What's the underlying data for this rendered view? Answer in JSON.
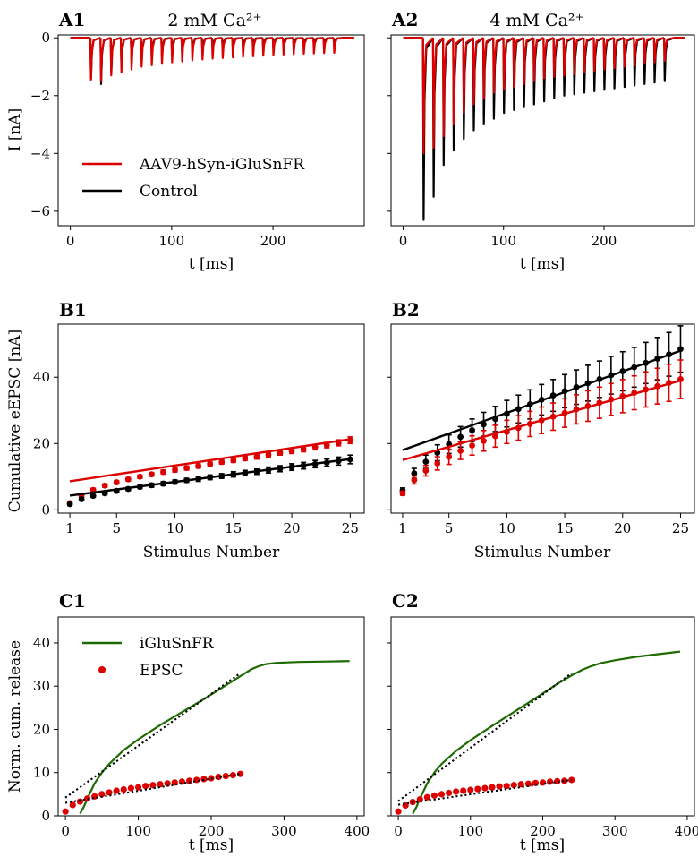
{
  "figure": {
    "panels": {
      "A1": {
        "label": "A1",
        "title": "2 mM Ca²⁺"
      },
      "A2": {
        "label": "A2",
        "title": "4 mM Ca²⁺"
      },
      "B1": {
        "label": "B1"
      },
      "B2": {
        "label": "B2"
      },
      "C1": {
        "label": "C1"
      },
      "C2": {
        "label": "C2"
      }
    }
  },
  "colors": {
    "aav": "#dd0000",
    "control": "#000000",
    "iglu": "#1d6a00",
    "epsc": "#dd0000",
    "fit": "#000000"
  },
  "chart_data": [
    {
      "id": "A1",
      "type": "line",
      "title": "2 mM Ca²⁺",
      "xlabel": "t [ms]",
      "ylabel": "I [nA]",
      "xlim": [
        -12,
        290
      ],
      "ylim": [
        -6.5,
        0.1
      ],
      "xticks": [
        0,
        100,
        200
      ],
      "yticks": [
        -6,
        -4,
        -2,
        0
      ],
      "xtick_labels": [
        "0",
        "100",
        "200"
      ],
      "ytick_labels": [
        "−6",
        "−4",
        "−2",
        "0"
      ],
      "legend": {
        "location": "lower-left",
        "entries": [
          "AAV9-hSyn-iGluSnFR",
          "Control"
        ]
      },
      "stim_start": 20,
      "stim_interval": 10,
      "n_stimuli": 25,
      "series": [
        {
          "name": "AAV9-hSyn-iGluSnFR",
          "color": "#dd0000",
          "peaks": [
            -1.45,
            -1.5,
            -1.3,
            -1.2,
            -1.1,
            -1.0,
            -0.95,
            -0.9,
            -0.85,
            -0.82,
            -0.78,
            -0.75,
            -0.72,
            -0.7,
            -0.68,
            -0.66,
            -0.64,
            -0.62,
            -0.6,
            -0.58,
            -0.57,
            -0.55,
            -0.54,
            -0.53,
            -0.52
          ]
        },
        {
          "name": "Control",
          "color": "#000000",
          "peaks": [
            -1.4,
            -1.6,
            -1.2,
            -1.0,
            -0.9,
            -0.8,
            -0.72,
            -0.66,
            -0.6,
            -0.56,
            -0.52,
            -0.48,
            -0.45,
            -0.42,
            -0.4,
            -0.38,
            -0.36,
            -0.34,
            -0.33,
            -0.32,
            -0.31,
            -0.3,
            -0.29,
            -0.28,
            -0.27
          ]
        }
      ]
    },
    {
      "id": "A2",
      "type": "line",
      "title": "4 mM Ca²⁺",
      "xlabel": "t [ms]",
      "ylabel": "",
      "xlim": [
        -12,
        290
      ],
      "ylim": [
        -6.5,
        0.1
      ],
      "xticks": [
        0,
        100,
        200
      ],
      "yticks": [
        -6,
        -4,
        -2,
        0
      ],
      "xtick_labels": [
        "0",
        "100",
        "200"
      ],
      "ytick_labels": [],
      "stim_start": 20,
      "stim_interval": 10,
      "n_stimuli": 25,
      "series": [
        {
          "name": "AAV9-hSyn-iGluSnFR",
          "color": "#dd0000",
          "peaks": [
            -4.0,
            -3.8,
            -3.4,
            -3.0,
            -2.6,
            -2.3,
            -2.1,
            -1.9,
            -1.8,
            -1.7,
            -1.6,
            -1.5,
            -1.4,
            -1.35,
            -1.3,
            -1.25,
            -1.2,
            -1.15,
            -1.1,
            -1.05,
            -1.0,
            -0.95,
            -0.9,
            -0.85,
            -0.8
          ]
        },
        {
          "name": "Control",
          "color": "#000000",
          "peaks": [
            -6.3,
            -5.5,
            -4.4,
            -3.9,
            -3.5,
            -3.2,
            -3.0,
            -2.8,
            -2.6,
            -2.5,
            -2.4,
            -2.3,
            -2.2,
            -2.1,
            -2.0,
            -1.95,
            -1.9,
            -1.85,
            -1.8,
            -1.75,
            -1.7,
            -1.65,
            -1.6,
            -1.55,
            -1.5
          ]
        }
      ]
    },
    {
      "id": "B1",
      "type": "scatter",
      "xlabel": "Stimulus Number",
      "ylabel": "Cumulative eEPSC [nA]",
      "xlim": [
        0,
        26.2
      ],
      "ylim": [
        -1,
        56
      ],
      "xticks": [
        1,
        5,
        10,
        15,
        20,
        25
      ],
      "yticks": [
        0,
        20,
        40
      ],
      "xtick_labels": [
        "1",
        "5",
        "10",
        "15",
        "20",
        "25"
      ],
      "ytick_labels": [
        "0",
        "20",
        "40"
      ],
      "series": [
        {
          "name": "AAV9-hSyn-iGluSnFR",
          "color": "#dd0000",
          "values": [
            2.0,
            4.2,
            6.0,
            7.3,
            8.3,
            9.2,
            10.0,
            10.7,
            11.4,
            12.0,
            12.6,
            13.2,
            13.8,
            14.4,
            14.9,
            15.5,
            16.0,
            16.6,
            17.2,
            17.7,
            18.3,
            18.9,
            19.5,
            20.2,
            21.0
          ],
          "err": [
            0.5,
            0.5,
            0.5,
            0.5,
            0.5,
            0.5,
            0.5,
            0.5,
            0.6,
            0.6,
            0.6,
            0.6,
            0.6,
            0.6,
            0.6,
            0.6,
            0.7,
            0.7,
            0.7,
            0.7,
            0.8,
            0.8,
            0.8,
            0.9,
            1.0
          ],
          "fit": [
            8.6,
            21.3
          ]
        },
        {
          "name": "Control",
          "color": "#000000",
          "values": [
            1.7,
            3.2,
            4.2,
            5.0,
            5.7,
            6.3,
            6.9,
            7.4,
            7.9,
            8.4,
            8.9,
            9.3,
            9.8,
            10.2,
            10.7,
            11.1,
            11.5,
            12.0,
            12.4,
            12.9,
            13.3,
            13.8,
            14.2,
            14.7,
            15.2
          ],
          "err": [
            0.4,
            0.4,
            0.4,
            0.5,
            0.5,
            0.5,
            0.5,
            0.6,
            0.6,
            0.6,
            0.6,
            0.7,
            0.7,
            0.7,
            0.8,
            0.8,
            0.8,
            0.9,
            0.9,
            1.0,
            1.0,
            1.1,
            1.1,
            1.2,
            1.3
          ],
          "fit": [
            4.3,
            15.3
          ]
        }
      ]
    },
    {
      "id": "B2",
      "type": "scatter",
      "xlabel": "Stimulus Number",
      "ylabel": "",
      "xlim": [
        0,
        26.2
      ],
      "ylim": [
        -1,
        56
      ],
      "xticks": [
        1,
        5,
        10,
        15,
        20,
        25
      ],
      "yticks": [
        0,
        20,
        40
      ],
      "xtick_labels": [
        "1",
        "5",
        "10",
        "15",
        "20",
        "25"
      ],
      "ytick_labels": [],
      "series": [
        {
          "name": "Control",
          "color": "#000000",
          "values": [
            5.8,
            11.0,
            14.5,
            17.2,
            19.8,
            22.0,
            24.0,
            25.8,
            27.4,
            29.0,
            30.4,
            31.8,
            33.2,
            34.5,
            35.8,
            37.0,
            38.2,
            39.4,
            40.6,
            41.8,
            43.0,
            44.3,
            45.6,
            46.9,
            48.5
          ],
          "err": [
            0.8,
            1.5,
            2.0,
            2.4,
            2.8,
            3.1,
            3.4,
            3.6,
            3.8,
            4.0,
            4.2,
            4.4,
            4.6,
            4.8,
            5.0,
            5.2,
            5.4,
            5.5,
            5.7,
            5.9,
            6.0,
            6.2,
            6.4,
            6.6,
            7.0
          ],
          "fit": [
            18.0,
            48.0
          ]
        },
        {
          "name": "AAV9-hSyn-iGluSnFR",
          "color": "#dd0000",
          "values": [
            5.0,
            9.0,
            11.8,
            14.0,
            16.0,
            17.8,
            19.4,
            20.8,
            22.2,
            23.5,
            24.7,
            25.9,
            27.0,
            28.1,
            29.2,
            30.3,
            31.3,
            32.3,
            33.3,
            34.3,
            35.3,
            36.3,
            37.3,
            38.3,
            39.4
          ],
          "err": [
            0.6,
            1.2,
            1.6,
            2.0,
            2.3,
            2.6,
            2.9,
            3.1,
            3.3,
            3.5,
            3.7,
            3.8,
            4.0,
            4.1,
            4.3,
            4.4,
            4.6,
            4.7,
            4.8,
            5.0,
            5.1,
            5.3,
            5.4,
            5.6,
            5.8
          ],
          "fit": [
            15.0,
            39.0
          ]
        }
      ]
    },
    {
      "id": "C1",
      "type": "line",
      "xlabel": "t [ms]",
      "ylabel": "Norm. cum. release",
      "xlim": [
        -10,
        410
      ],
      "ylim": [
        0,
        46
      ],
      "xticks": [
        0,
        100,
        200,
        300,
        400
      ],
      "yticks": [
        0,
        10,
        20,
        30,
        40
      ],
      "xtick_labels": [
        "0",
        "100",
        "200",
        "300",
        "400"
      ],
      "ytick_labels": [
        "0",
        "10",
        "20",
        "30",
        "40"
      ],
      "legend": {
        "location": "top-left",
        "entries": [
          "iGluSnFR",
          "EPSC"
        ]
      },
      "series": [
        {
          "name": "iGluSnFR",
          "color": "#1d6a00",
          "x": [
            20,
            25,
            30,
            40,
            50,
            60,
            80,
            100,
            130,
            160,
            190,
            220,
            240,
            255,
            265,
            275,
            290,
            320,
            360,
            390
          ],
          "y": [
            0.5,
            2.0,
            4.0,
            7.5,
            10.0,
            12.0,
            15.2,
            17.7,
            21.0,
            24.0,
            27.0,
            30.2,
            32.3,
            33.9,
            34.6,
            35.1,
            35.4,
            35.6,
            35.7,
            35.8
          ]
        },
        {
          "name": "EPSC",
          "color": "#dd0000",
          "x": [
            0,
            10,
            20,
            30,
            40,
            50,
            60,
            70,
            80,
            90,
            100,
            110,
            120,
            130,
            140,
            150,
            160,
            170,
            180,
            190,
            200,
            210,
            220,
            230,
            240
          ],
          "y": [
            1.0,
            2.5,
            3.3,
            4.0,
            4.5,
            5.0,
            5.4,
            5.8,
            6.1,
            6.4,
            6.6,
            6.9,
            7.1,
            7.3,
            7.5,
            7.7,
            7.9,
            8.1,
            8.3,
            8.5,
            8.7,
            9.0,
            9.2,
            9.4,
            9.7
          ]
        },
        {
          "name": "iGluSnFR fit",
          "color": "#000000",
          "style": "dotted",
          "x": [
            0,
            240
          ],
          "y": [
            4.2,
            33.0
          ]
        },
        {
          "name": "EPSC fit",
          "color": "#000000",
          "style": "dotted",
          "x": [
            0,
            240
          ],
          "y": [
            3.0,
            9.7
          ]
        }
      ]
    },
    {
      "id": "C2",
      "type": "line",
      "xlabel": "t [ms]",
      "ylabel": "",
      "xlim": [
        -10,
        410
      ],
      "ylim": [
        0,
        46
      ],
      "xticks": [
        0,
        100,
        200,
        300,
        400
      ],
      "yticks": [
        0,
        10,
        20,
        30,
        40
      ],
      "xtick_labels": [
        "0",
        "100",
        "200",
        "300",
        "400"
      ],
      "ytick_labels": [],
      "series": [
        {
          "name": "iGluSnFR",
          "color": "#1d6a00",
          "x": [
            20,
            25,
            30,
            40,
            50,
            60,
            80,
            100,
            130,
            160,
            190,
            220,
            240,
            255,
            265,
            280,
            300,
            330,
            360,
            390
          ],
          "y": [
            0.5,
            2.0,
            4.0,
            7.5,
            10.0,
            12.0,
            15.0,
            17.5,
            20.8,
            24.0,
            27.2,
            30.5,
            32.5,
            33.8,
            34.5,
            35.3,
            36.0,
            36.8,
            37.4,
            38.0
          ]
        },
        {
          "name": "EPSC",
          "color": "#dd0000",
          "x": [
            0,
            10,
            20,
            30,
            40,
            50,
            60,
            70,
            80,
            90,
            100,
            110,
            120,
            130,
            140,
            150,
            160,
            170,
            180,
            190,
            200,
            210,
            220,
            230,
            240
          ],
          "y": [
            1.0,
            2.4,
            3.2,
            3.8,
            4.3,
            4.7,
            5.0,
            5.3,
            5.6,
            5.8,
            6.0,
            6.2,
            6.4,
            6.6,
            6.8,
            6.9,
            7.1,
            7.3,
            7.4,
            7.6,
            7.7,
            7.9,
            8.0,
            8.1,
            8.3
          ]
        },
        {
          "name": "iGluSnFR fit",
          "color": "#000000",
          "style": "dotted",
          "x": [
            0,
            240
          ],
          "y": [
            3.4,
            33.0
          ]
        },
        {
          "name": "EPSC fit",
          "color": "#000000",
          "style": "dotted",
          "x": [
            0,
            240
          ],
          "y": [
            2.6,
            8.3
          ]
        }
      ]
    }
  ]
}
